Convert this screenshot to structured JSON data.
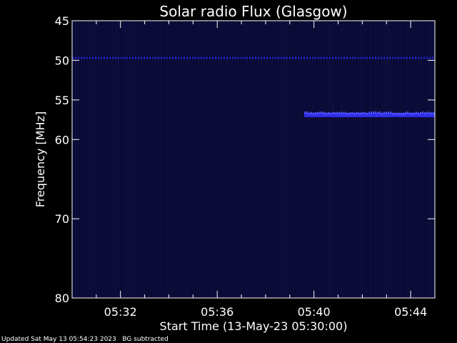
{
  "chart_data": {
    "type": "heatmap",
    "title": "Solar radio Flux (Glasgow)",
    "xlabel": "Start Time (13-May-23 05:30:00)",
    "ylabel": "Frequency [MHz]",
    "x_tick_labels": [
      "05:32",
      "05:36",
      "05:40",
      "05:44"
    ],
    "x_tick_values_min": [
      2,
      6,
      10,
      14
    ],
    "x_range_min": [
      0,
      15
    ],
    "y_tick_labels": [
      "45",
      "50",
      "55",
      "60",
      "70",
      "80"
    ],
    "y_tick_values": [
      45,
      50,
      55,
      60,
      70,
      80
    ],
    "y_range": [
      45,
      80
    ],
    "y_axis_inverted": true,
    "colors": {
      "background": "#000000",
      "spectrogram_base": "#0a0a33",
      "emission": "#3333ff",
      "axis": "#ffffff"
    },
    "features": [
      {
        "kind": "constant_band",
        "freq_mhz": 49.7,
        "t_start_min": 0,
        "t_end_min": 15
      },
      {
        "kind": "emission_band",
        "freq_mhz": 56.9,
        "t_start_min": 9.6,
        "t_end_min": 15
      }
    ]
  },
  "footer": "Updated Sat May 13 05:54:23 2023   BG subtracted"
}
